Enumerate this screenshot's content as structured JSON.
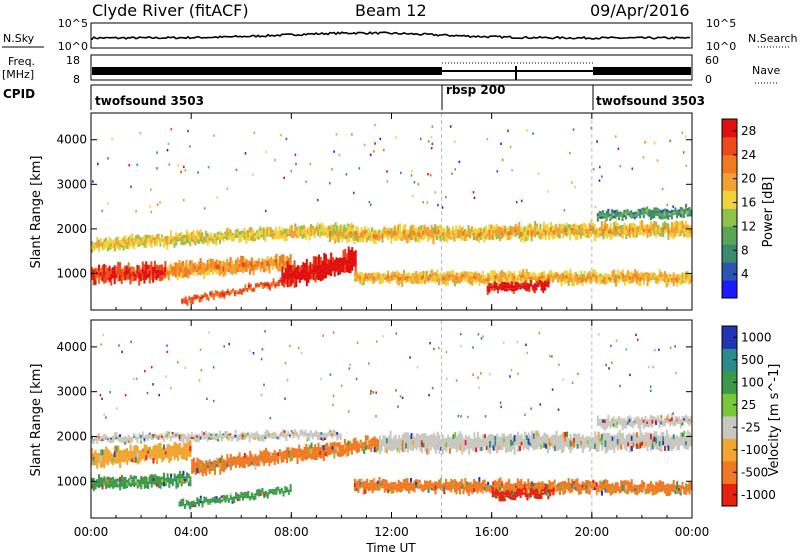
{
  "header": {
    "station": "Clyde River (fitACF)",
    "beam": "Beam 12",
    "date": "09/Apr/2016"
  },
  "strips": {
    "nsky_label": "N.Sky",
    "nsky_ticks": [
      "10^5",
      "10^0"
    ],
    "nsearch_label": "N.Search",
    "nsearch_ticks": [
      "10^5",
      "10^0"
    ],
    "freq_label_line1": "Freq.",
    "freq_label_line2": "[MHz]",
    "freq_ticks": [
      "18",
      "8"
    ],
    "nave_label": "Nave",
    "nave_ticks": [
      "60",
      "0"
    ],
    "cpid_label": "CPID",
    "cpid_modes": [
      {
        "name": "twofsound 3503",
        "start": 0,
        "end": 14
      },
      {
        "name": "rbsp 200",
        "start": 14,
        "end": 20
      },
      {
        "name": "twofsound 3503",
        "start": 20,
        "end": 24
      }
    ]
  },
  "chart_data": [
    {
      "type": "heatmap",
      "title": "",
      "xlabel": "Time UT",
      "ylabel": "Slant Range [km]",
      "x_ticks": [
        "00:00",
        "04:00",
        "08:00",
        "12:00",
        "16:00",
        "20:00",
        "00:00"
      ],
      "y_ticks": [
        "1000",
        "2000",
        "3000",
        "4000"
      ],
      "xlim": [
        0,
        24
      ],
      "ylim": [
        180,
        4600
      ],
      "colorbar": {
        "label": "Power [dB]",
        "ticks": [
          "4",
          "8",
          "12",
          "16",
          "20",
          "24",
          "28"
        ],
        "range": [
          0,
          30
        ],
        "colors": [
          "#1a1aff",
          "#2b55b5",
          "#3a8a6e",
          "#5aa656",
          "#8fc24a",
          "#f0d23a",
          "#f2a030",
          "#f07a22",
          "#ec4a1a",
          "#e01010"
        ]
      },
      "bands": [
        {
          "t0": 0.0,
          "t1": 3.0,
          "r_mid0": 950,
          "r_mid1": 1050,
          "width": 380,
          "v0": 24,
          "v1": 28
        },
        {
          "t0": 3.0,
          "t1": 8.0,
          "r_mid0": 1050,
          "r_mid1": 1250,
          "width": 330,
          "v0": 18,
          "v1": 22
        },
        {
          "t0": 7.6,
          "t1": 10.6,
          "r_mid0": 900,
          "r_mid1": 1300,
          "width": 520,
          "v0": 26,
          "v1": 30
        },
        {
          "t0": 0.0,
          "t1": 10.5,
          "r_mid0": 1650,
          "r_mid1": 2000,
          "width": 260,
          "v0": 14,
          "v1": 18
        },
        {
          "t0": 3.6,
          "t1": 7.6,
          "r_mid0": 380,
          "r_mid1": 800,
          "width": 140,
          "v0": 22,
          "v1": 26
        },
        {
          "t0": 9.5,
          "t1": 24.0,
          "r_mid0": 1850,
          "r_mid1": 2000,
          "width": 320,
          "v0": 14,
          "v1": 20
        },
        {
          "t0": 10.5,
          "t1": 24.0,
          "r_mid0": 900,
          "r_mid1": 900,
          "width": 260,
          "v0": 16,
          "v1": 20
        },
        {
          "t0": 15.8,
          "t1": 18.3,
          "r_mid0": 650,
          "r_mid1": 750,
          "width": 200,
          "v0": 26,
          "v1": 30
        },
        {
          "t0": 20.2,
          "t1": 24.0,
          "r_mid0": 2300,
          "r_mid1": 2400,
          "width": 200,
          "v0": 6,
          "v1": 10
        }
      ]
    },
    {
      "type": "heatmap",
      "title": "",
      "xlabel": "Time UT",
      "ylabel": "Slant Range [km]",
      "x_ticks": [
        "00:00",
        "04:00",
        "08:00",
        "12:00",
        "16:00",
        "20:00",
        "00:00"
      ],
      "y_ticks": [
        "1000",
        "2000",
        "3000",
        "4000"
      ],
      "xlim": [
        0,
        24
      ],
      "ylim": [
        180,
        4600
      ],
      "colorbar": {
        "label": "Velocity [m s^-1]",
        "ticks": [
          "1000",
          "500",
          "100",
          "25",
          "-25",
          "-100",
          "-500",
          "-1000"
        ],
        "colors": [
          "#1f35b4",
          "#2b8a8a",
          "#3a9a4a",
          "#7ac83a",
          "#c8c8c0",
          "#f2a530",
          "#f07a22",
          "#e82010"
        ]
      },
      "bands": [
        {
          "t0": 0.0,
          "t1": 4.0,
          "r_mid0": 1500,
          "r_mid1": 1700,
          "width": 360,
          "v": "#f2a530"
        },
        {
          "t0": 0.0,
          "t1": 4.0,
          "r_mid0": 950,
          "r_mid1": 1050,
          "width": 260,
          "v": "#3a9a4a"
        },
        {
          "t0": 4.0,
          "t1": 11.5,
          "r_mid0": 1300,
          "r_mid1": 1850,
          "width": 320,
          "v": "#f07a22"
        },
        {
          "t0": 3.5,
          "t1": 8.0,
          "r_mid0": 480,
          "r_mid1": 800,
          "width": 150,
          "v": "#3a9a4a"
        },
        {
          "t0": 0.0,
          "t1": 10.0,
          "r_mid0": 1950,
          "r_mid1": 2050,
          "width": 160,
          "v": "#c8c8c0"
        },
        {
          "t0": 11.5,
          "t1": 24.0,
          "r_mid0": 1850,
          "r_mid1": 1900,
          "width": 380,
          "v": "#c8c8c0"
        },
        {
          "t0": 10.5,
          "t1": 24.0,
          "r_mid0": 900,
          "r_mid1": 850,
          "width": 260,
          "v": "#f07a22"
        },
        {
          "t0": 16.0,
          "t1": 18.5,
          "r_mid0": 700,
          "r_mid1": 750,
          "width": 200,
          "v": "#e82010"
        },
        {
          "t0": 20.2,
          "t1": 24.0,
          "r_mid0": 2300,
          "r_mid1": 2350,
          "width": 220,
          "v": "#c8c8c0"
        }
      ]
    }
  ]
}
